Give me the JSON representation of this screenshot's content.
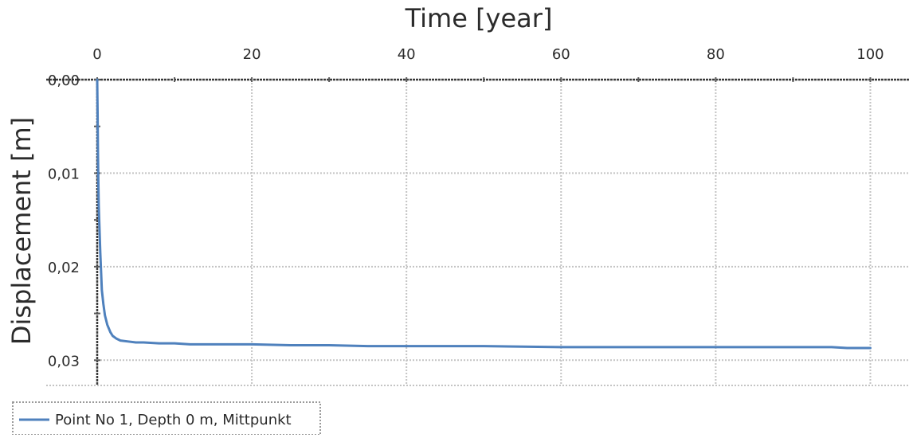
{
  "chart_data": {
    "type": "line",
    "xlabel": "Time [year]",
    "ylabel": "Displacement [m]",
    "xlim": [
      0,
      105
    ],
    "ylim": [
      0,
      0.0327
    ],
    "x_axis_position": "top",
    "y_axis_inverted": true,
    "grid": true,
    "x_ticks": [
      0,
      20,
      40,
      60,
      80,
      100
    ],
    "x_tick_labels": [
      "0",
      "20",
      "40",
      "60",
      "80",
      "100"
    ],
    "y_ticks": [
      0,
      0.01,
      0.02,
      0.03
    ],
    "y_tick_labels": [
      "0,00",
      "0,01",
      "0,02",
      "0,03"
    ],
    "legend_position": "bottom-left",
    "series": [
      {
        "name": "Point No 1, Depth 0 m, Mittpunkt",
        "color": "#4f81bd",
        "x": [
          0,
          0.05,
          0.1,
          0.15,
          0.2,
          0.3,
          0.4,
          0.5,
          0.6,
          0.8,
          1.0,
          1.3,
          1.7,
          2.0,
          2.5,
          3,
          4,
          5,
          6,
          8,
          10,
          12,
          16,
          20,
          25,
          30,
          35,
          40,
          45,
          50,
          60,
          65,
          70,
          80,
          90,
          95,
          97,
          100
        ],
        "y": [
          0,
          0.0035,
          0.008,
          0.011,
          0.0135,
          0.016,
          0.0185,
          0.0205,
          0.0225,
          0.024,
          0.0252,
          0.0262,
          0.027,
          0.0274,
          0.0277,
          0.0279,
          0.028,
          0.0281,
          0.0281,
          0.0282,
          0.0282,
          0.0283,
          0.0283,
          0.0283,
          0.0284,
          0.0284,
          0.0285,
          0.0285,
          0.0285,
          0.0285,
          0.0286,
          0.0286,
          0.0286,
          0.0286,
          0.0286,
          0.0286,
          0.0287,
          0.0287
        ]
      }
    ]
  }
}
